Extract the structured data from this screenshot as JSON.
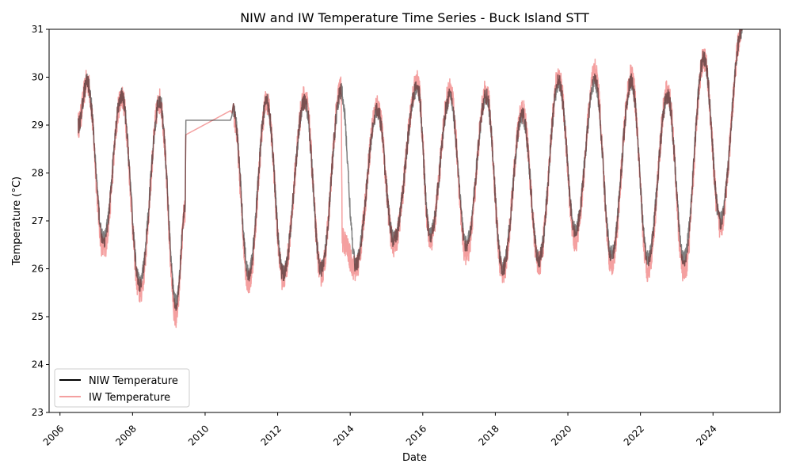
{
  "chart_data": {
    "type": "line",
    "title": "NIW and IW Temperature Time Series - Buck Island STT",
    "xlabel": "Date",
    "ylabel": "Temperature (°C)",
    "xlim": [
      2005.7,
      2025.85
    ],
    "ylim": [
      23,
      31
    ],
    "x_ticks": [
      2006,
      2008,
      2010,
      2012,
      2014,
      2016,
      2018,
      2020,
      2022,
      2024
    ],
    "y_ticks": [
      23,
      24,
      25,
      26,
      27,
      28,
      29,
      30,
      31
    ],
    "grid": false,
    "legend_position": "lower-left",
    "series": [
      {
        "name": "NIW Temperature",
        "color": "#000000",
        "x": [
          2006.5,
          2006.75,
          2007.2,
          2007.7,
          2008.2,
          2008.75,
          2009.2,
          2009.45,
          2009.47,
          2010.2,
          2010.7,
          2010.78,
          2011.2,
          2011.7,
          2012.15,
          2012.75,
          2013.2,
          2013.75,
          2014.15,
          2014.75,
          2015.2,
          2015.85,
          2016.2,
          2016.75,
          2017.2,
          2017.75,
          2018.2,
          2018.75,
          2019.2,
          2019.75,
          2020.2,
          2020.75,
          2021.2,
          2021.75,
          2022.2,
          2022.75,
          2023.2,
          2023.75,
          2024.2,
          2024.8
        ],
        "values": [
          29.0,
          29.9,
          26.6,
          29.6,
          25.7,
          29.5,
          25.3,
          27.2,
          29.1,
          29.1,
          29.1,
          29.3,
          25.9,
          29.5,
          25.9,
          29.5,
          26.0,
          29.7,
          26.1,
          29.3,
          26.6,
          29.8,
          26.7,
          29.6,
          26.5,
          29.6,
          26.0,
          29.2,
          26.2,
          29.9,
          26.8,
          29.9,
          26.3,
          29.9,
          26.2,
          29.6,
          26.2,
          30.4,
          27.0,
          31.0
        ]
      },
      {
        "name": "IW Temperature",
        "color": "#f08080",
        "x": [
          2006.5,
          2006.75,
          2007.2,
          2007.7,
          2008.2,
          2008.75,
          2009.2,
          2009.45,
          2009.47,
          2010.7,
          2010.78,
          2011.2,
          2011.7,
          2012.15,
          2012.75,
          2013.2,
          2013.75,
          2013.78,
          2014.15,
          2014.75,
          2015.2,
          2015.85,
          2016.2,
          2016.75,
          2017.2,
          2017.75,
          2018.2,
          2018.75,
          2019.2,
          2019.75,
          2020.2,
          2020.75,
          2021.2,
          2021.75,
          2022.2,
          2022.75,
          2023.2,
          2023.75,
          2024.2,
          2024.8
        ],
        "values": [
          29.0,
          29.9,
          26.4,
          29.6,
          25.5,
          29.5,
          25.0,
          27.2,
          28.8,
          29.3,
          29.2,
          25.7,
          29.5,
          25.8,
          29.6,
          25.9,
          29.8,
          26.6,
          26.0,
          29.4,
          26.5,
          29.9,
          26.6,
          29.7,
          26.3,
          29.7,
          25.9,
          29.3,
          26.1,
          30.0,
          26.6,
          30.1,
          26.1,
          30.0,
          26.0,
          29.7,
          25.9,
          30.4,
          26.9,
          31.0
        ]
      }
    ]
  }
}
